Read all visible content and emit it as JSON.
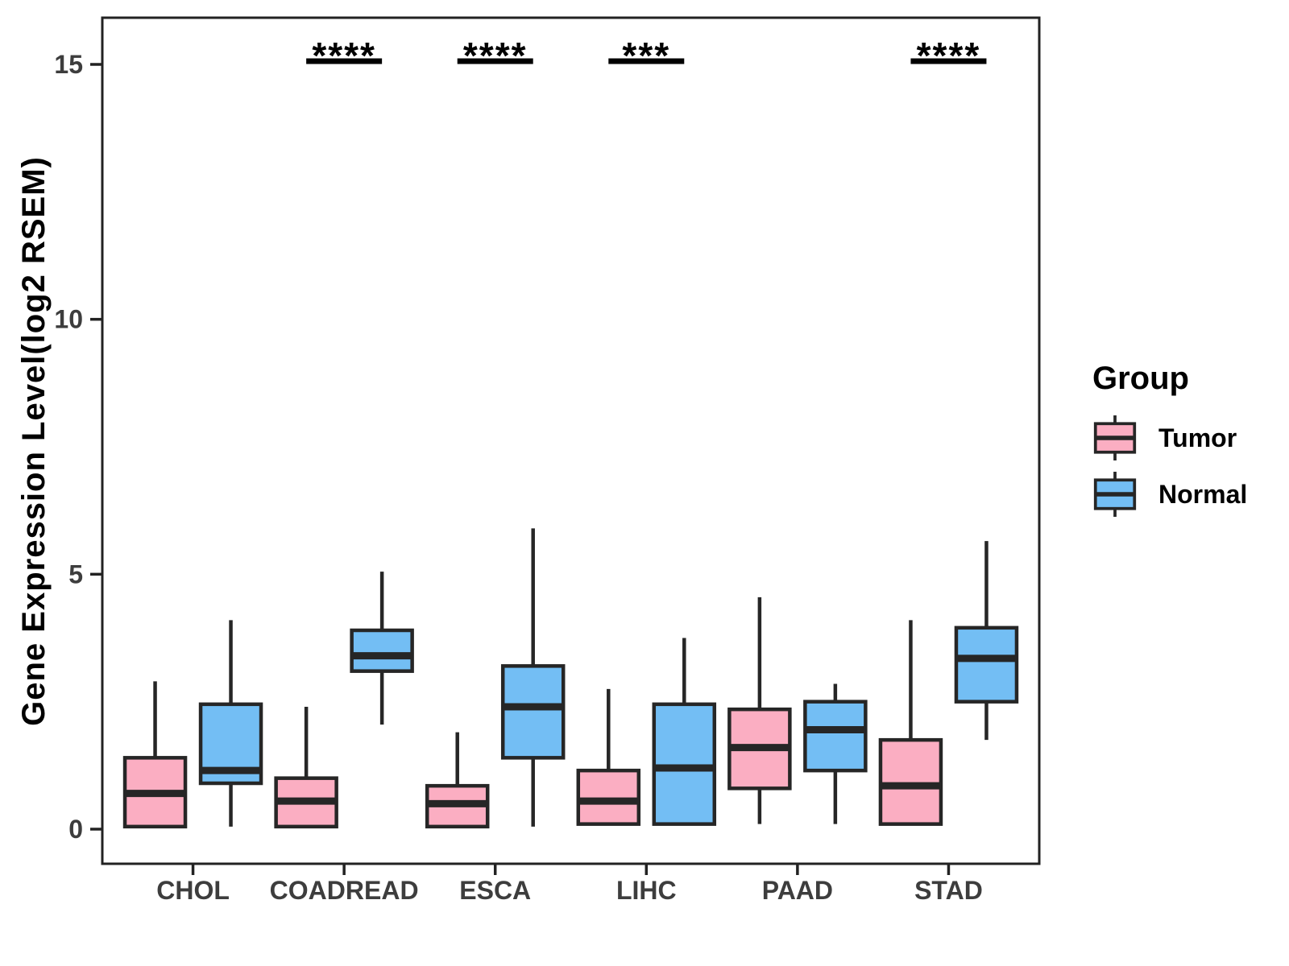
{
  "chart_data": {
    "type": "boxplot",
    "title": "",
    "ylabel": "Gene Expression Level(log2 RSEM)",
    "xlabel": "",
    "ylim": [
      0,
      15.5
    ],
    "yticks": [
      0,
      5,
      10,
      15
    ],
    "grid": false,
    "legend_title": "Group",
    "legend_position": "right",
    "categories": [
      "CHOL",
      "COADREAD",
      "ESCA",
      "LIHC",
      "PAAD",
      "STAD"
    ],
    "series": [
      {
        "name": "Tumor",
        "color": "#FBAEC2",
        "stats": [
          {
            "min": 0.05,
            "q1": 0.05,
            "median": 0.7,
            "q3": 1.4,
            "max": 2.9
          },
          {
            "min": 0.05,
            "q1": 0.05,
            "median": 0.55,
            "q3": 1.0,
            "max": 2.4
          },
          {
            "min": 0.05,
            "q1": 0.05,
            "median": 0.5,
            "q3": 0.85,
            "max": 1.9
          },
          {
            "min": 0.1,
            "q1": 0.1,
            "median": 0.55,
            "q3": 1.15,
            "max": 2.75
          },
          {
            "min": 0.1,
            "q1": 0.8,
            "median": 1.6,
            "q3": 2.35,
            "max": 4.55
          },
          {
            "min": 0.1,
            "q1": 0.1,
            "median": 0.85,
            "q3": 1.75,
            "max": 4.1
          }
        ]
      },
      {
        "name": "Normal",
        "color": "#73BEF4",
        "stats": [
          {
            "min": 0.05,
            "q1": 0.9,
            "median": 1.15,
            "q3": 2.45,
            "max": 4.1
          },
          {
            "min": 2.05,
            "q1": 3.1,
            "median": 3.4,
            "q3": 3.9,
            "max": 5.05
          },
          {
            "min": 0.05,
            "q1": 1.4,
            "median": 2.4,
            "q3": 3.2,
            "max": 5.9
          },
          {
            "min": 0.1,
            "q1": 0.1,
            "median": 1.2,
            "q3": 2.45,
            "max": 3.75
          },
          {
            "min": 0.1,
            "q1": 1.15,
            "median": 1.95,
            "q3": 2.5,
            "max": 2.85
          },
          {
            "min": 1.75,
            "q1": 2.5,
            "median": 3.35,
            "q3": 3.95,
            "max": 5.65
          }
        ]
      }
    ],
    "significance": [
      {
        "category": "COADREAD",
        "label": "****"
      },
      {
        "category": "ESCA",
        "label": "****"
      },
      {
        "category": "LIHC",
        "label": "***"
      },
      {
        "category": "STAD",
        "label": "****"
      }
    ]
  },
  "colors": {
    "tumor_fill": "#FBAEC2",
    "normal_fill": "#73BEF4",
    "box_stroke": "#262626",
    "axis_line": "#222222",
    "axis_text": "#3D3D3D",
    "significance": "#000000",
    "background": "#FFFFFF"
  }
}
